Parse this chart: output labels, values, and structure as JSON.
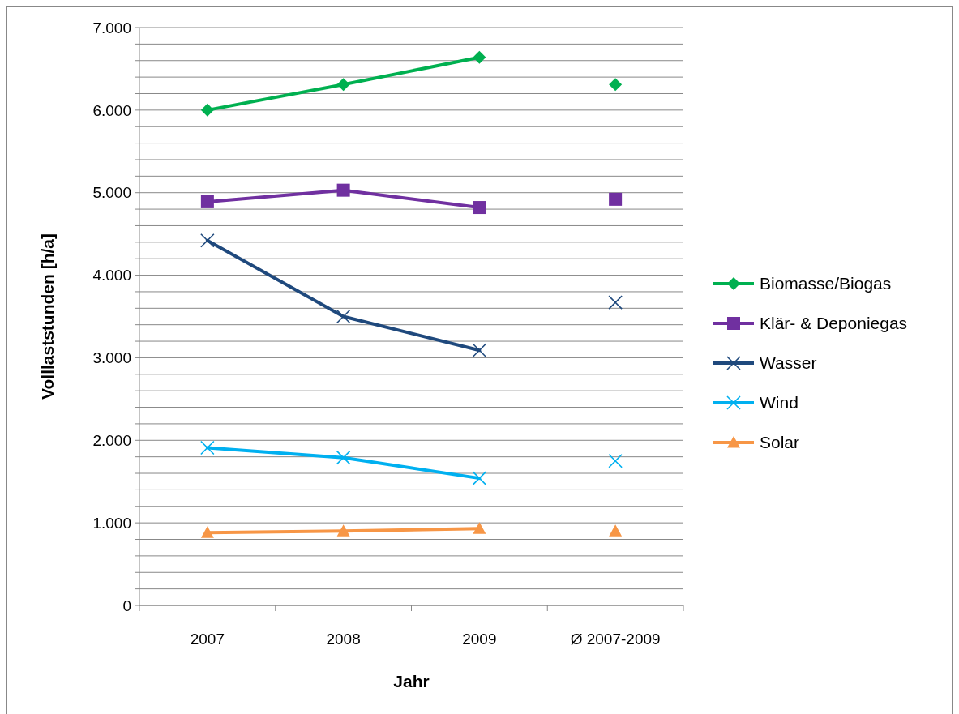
{
  "chart_data": {
    "type": "line",
    "xlabel": "Jahr",
    "ylabel": "Volllaststunden [h/a]",
    "categories": [
      "2007",
      "2008",
      "2009",
      "Ø 2007-2009"
    ],
    "ylim": [
      0,
      7000
    ],
    "yticks": [
      0,
      {
        "value": 200,
        "label": null
      },
      {
        "value": 400,
        "label": null
      },
      {
        "value": 600,
        "label": null
      },
      {
        "value": 800,
        "label": null
      },
      {
        "value": 1000,
        "label": "1.000"
      },
      {
        "value": 1200,
        "label": null
      },
      {
        "value": 1400,
        "label": null
      },
      {
        "value": 1600,
        "label": null
      },
      {
        "value": 1800,
        "label": null
      },
      {
        "value": 2000,
        "label": "2.000"
      },
      {
        "value": 2200,
        "label": null
      },
      {
        "value": 2400,
        "label": null
      },
      {
        "value": 2600,
        "label": null
      },
      {
        "value": 2800,
        "label": null
      },
      {
        "value": 3000,
        "label": "3.000"
      },
      {
        "value": 3200,
        "label": null
      },
      {
        "value": 3400,
        "label": null
      },
      {
        "value": 3600,
        "label": null
      },
      {
        "value": 3800,
        "label": null
      },
      {
        "value": 4000,
        "label": "4.000"
      },
      {
        "value": 4200,
        "label": null
      },
      {
        "value": 4400,
        "label": null
      },
      {
        "value": 4600,
        "label": null
      },
      {
        "value": 4800,
        "label": null
      },
      {
        "value": 5000,
        "label": "5.000"
      },
      {
        "value": 5200,
        "label": null
      },
      {
        "value": 5400,
        "label": null
      },
      {
        "value": 5600,
        "label": null
      },
      {
        "value": 5800,
        "label": null
      },
      {
        "value": 6000,
        "label": "6.000"
      },
      {
        "value": 6200,
        "label": null
      },
      {
        "value": 6400,
        "label": null
      },
      {
        "value": 6600,
        "label": null
      },
      {
        "value": 6800,
        "label": null
      },
      {
        "value": 7000,
        "label": "7.000"
      }
    ],
    "grid": "y",
    "legend": "right",
    "series": [
      {
        "name": "Biomasse/Biogas",
        "color": "#00b050",
        "marker": "diamond",
        "values": [
          6000,
          6310,
          6640,
          null
        ]
      },
      {
        "name": "Klär- & Deponiegas",
        "color": "#7030a0",
        "marker": "square",
        "values": [
          4890,
          5030,
          4820,
          null
        ]
      },
      {
        "name": "Wasser",
        "color": "#1f497d",
        "marker": "cross",
        "values": [
          4420,
          3500,
          3090,
          null
        ]
      },
      {
        "name": "Wind",
        "color": "#00b0f0",
        "marker": "cross",
        "values": [
          1910,
          1790,
          1540,
          null
        ]
      },
      {
        "name": "Solar",
        "color": "#f79646",
        "marker": "triangle",
        "values": [
          880,
          900,
          930,
          null
        ]
      },
      {
        "type": "scatter",
        "color": "#00b050",
        "marker": "diamond",
        "x": [
          "Ø 2007-2009"
        ],
        "values": [
          6310
        ]
      },
      {
        "type": "scatter",
        "color": "#7030a0",
        "marker": "square",
        "x": [
          "Ø 2007-2009"
        ],
        "values": [
          4920
        ]
      },
      {
        "type": "scatter",
        "color": "#1f497d",
        "marker": "cross",
        "x": [
          "Ø 2007-2009"
        ],
        "values": [
          3670
        ]
      },
      {
        "type": "scatter",
        "color": "#00b0f0",
        "marker": "cross",
        "x": [
          "Ø 2007-2009"
        ],
        "values": [
          1750
        ]
      },
      {
        "type": "scatter",
        "color": "#f79646",
        "marker": "triangle",
        "x": [
          "Ø 2007-2009"
        ],
        "values": [
          900
        ]
      }
    ]
  }
}
